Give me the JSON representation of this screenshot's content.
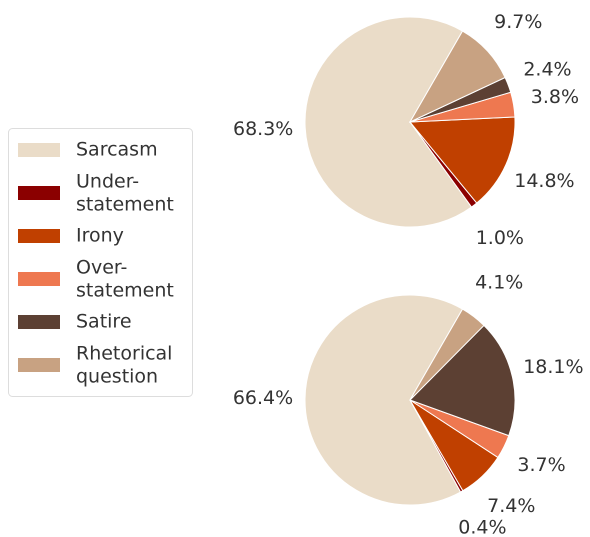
{
  "legend": {
    "labels": [
      "Sarcasm",
      "Under-\nstatement",
      "Irony",
      "Over-\nstatement",
      "Satire",
      "Rhetorical\nquestion"
    ],
    "colors": [
      "#eadcc8",
      "#8b0000",
      "#c04000",
      "#ee7850",
      "#5c4033",
      "#c8a282"
    ]
  },
  "chart_data": [
    {
      "type": "pie",
      "values": [
        68.3,
        1.0,
        14.8,
        3.8,
        2.4,
        9.7
      ],
      "value_labels": [
        "68.3%",
        "1.0%",
        "14.8%",
        "3.8%",
        "2.4%",
        "9.7%"
      ],
      "start_angle": 60
    },
    {
      "type": "pie",
      "values": [
        66.4,
        0.4,
        7.4,
        3.7,
        18.1,
        4.1
      ],
      "value_labels": [
        "66.4%",
        "0.4%",
        "7.4%",
        "3.7%",
        "18.1%",
        "4.1%"
      ],
      "start_angle": 60
    }
  ]
}
